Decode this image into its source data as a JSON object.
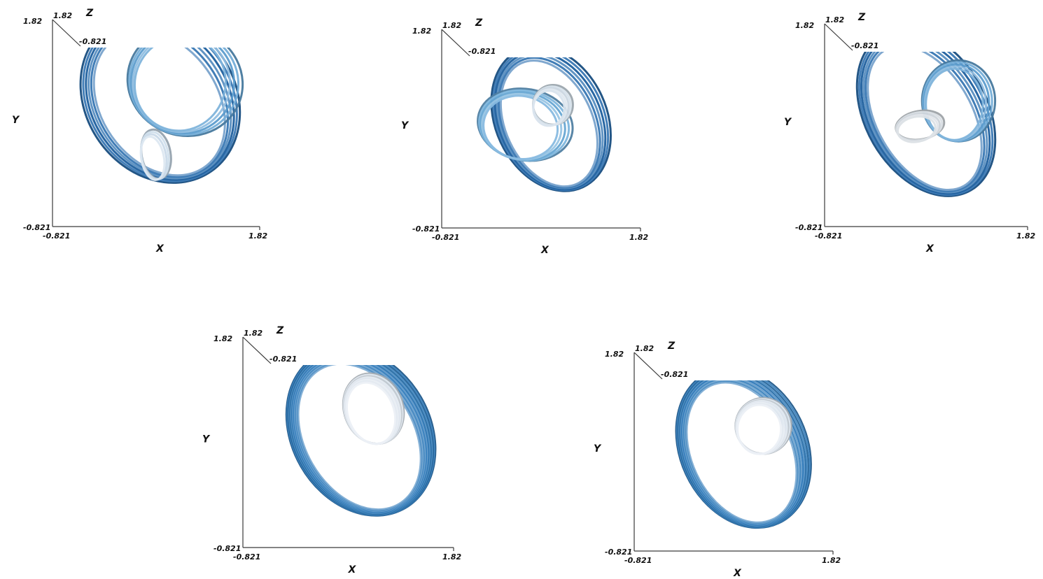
{
  "chart_data": [
    {
      "type": "line3d",
      "view": "three-loop attractor, view 1",
      "axes": {
        "x": {
          "label": "X",
          "min": "-0.821",
          "max": "1.82"
        },
        "y": {
          "label": "Y",
          "min": "-0.821",
          "max": "1.82"
        },
        "z": {
          "label": "Z",
          "min": "-0.821",
          "max": "1.82"
        }
      },
      "colormap": [
        "#08306b",
        "#2171b5",
        "#6baed6",
        "#c6dbef",
        "#e8e8e8"
      ],
      "loops": [
        {
          "name": "outer-loop",
          "cx": 0.52,
          "cy": 0.62,
          "rx": 0.36,
          "ry": 0.43,
          "rot": -35,
          "rings": 6,
          "color": "#1f66aa"
        },
        {
          "name": "upper-loop",
          "cx": 0.64,
          "cy": 0.7,
          "rx": 0.28,
          "ry": 0.26,
          "rot": 20,
          "rings": 5,
          "color": "#5fa1d2"
        },
        {
          "name": "inner-lobe",
          "cx": 0.5,
          "cy": 0.35,
          "rx": 0.07,
          "ry": 0.12,
          "rot": -10,
          "rings": 4,
          "color": "#c7d8e8"
        }
      ]
    },
    {
      "type": "line3d",
      "view": "three-loop attractor, view 2",
      "axes": {
        "x": {
          "label": "X",
          "min": "-0.821",
          "max": "1.82"
        },
        "y": {
          "label": "Y",
          "min": "-0.821",
          "max": "1.82"
        },
        "z": {
          "label": "Z",
          "min": "-0.821",
          "max": "1.82"
        }
      },
      "colormap": [
        "#08306b",
        "#2171b5",
        "#6baed6",
        "#c6dbef",
        "#e8e8e8"
      ],
      "loops": [
        {
          "name": "outer-loop",
          "cx": 0.55,
          "cy": 0.55,
          "rx": 0.28,
          "ry": 0.38,
          "rot": -25,
          "rings": 6,
          "color": "#1f66aa"
        },
        {
          "name": "left-loop",
          "cx": 0.42,
          "cy": 0.52,
          "rx": 0.24,
          "ry": 0.18,
          "rot": 10,
          "rings": 5,
          "color": "#6aaad8"
        },
        {
          "name": "inner-lobe",
          "cx": 0.56,
          "cy": 0.62,
          "rx": 0.1,
          "ry": 0.1,
          "rot": 0,
          "rings": 5,
          "color": "#d0dde8"
        }
      ]
    },
    {
      "type": "line3d",
      "view": "three-loop attractor, view 3",
      "axes": {
        "x": {
          "label": "X",
          "min": "-0.821",
          "max": "1.82"
        },
        "y": {
          "label": "Y",
          "min": "-0.821",
          "max": "1.82"
        },
        "z": {
          "label": "Z",
          "min": "-0.821",
          "max": "1.82"
        }
      },
      "colormap": [
        "#08306b",
        "#2171b5",
        "#6baed6",
        "#c6dbef",
        "#e8e8e8"
      ],
      "loops": [
        {
          "name": "outer-loop",
          "cx": 0.5,
          "cy": 0.56,
          "rx": 0.3,
          "ry": 0.44,
          "rot": -30,
          "rings": 6,
          "color": "#1f66aa"
        },
        {
          "name": "right-loop",
          "cx": 0.66,
          "cy": 0.62,
          "rx": 0.18,
          "ry": 0.2,
          "rot": 0,
          "rings": 5,
          "color": "#5fa1d2"
        },
        {
          "name": "inner-lobe",
          "cx": 0.47,
          "cy": 0.5,
          "rx": 0.12,
          "ry": 0.07,
          "rot": -10,
          "rings": 5,
          "color": "#d3d9e0"
        }
      ]
    },
    {
      "type": "line3d",
      "view": "dense torus-like attractor, view 4",
      "axes": {
        "x": {
          "label": "X",
          "min": "-0.821",
          "max": "1.82"
        },
        "y": {
          "label": "Y",
          "min": "-0.821",
          "max": "1.82"
        },
        "z": {
          "label": "Z",
          "min": "-0.821",
          "max": "1.82"
        }
      },
      "colormap": [
        "#08306b",
        "#2171b5",
        "#6baed6",
        "#c6dbef",
        "#e8e8e8"
      ],
      "loops": [
        {
          "name": "outer-shell",
          "cx": 0.56,
          "cy": 0.55,
          "rx": 0.33,
          "ry": 0.42,
          "rot": -30,
          "rings": 14,
          "color": "#2a77b8"
        },
        {
          "name": "inner-core",
          "cx": 0.62,
          "cy": 0.66,
          "rx": 0.14,
          "ry": 0.17,
          "rot": -20,
          "rings": 8,
          "color": "#dfe6ee"
        }
      ]
    },
    {
      "type": "line3d",
      "view": "dense torus-like attractor, view 5",
      "axes": {
        "x": {
          "label": "X",
          "min": "-0.821",
          "max": "1.82"
        },
        "y": {
          "label": "Y",
          "min": "-0.821",
          "max": "1.82"
        },
        "z": {
          "label": "Z",
          "min": "-0.821",
          "max": "1.82"
        }
      },
      "colormap": [
        "#08306b",
        "#2171b5",
        "#6baed6",
        "#c6dbef",
        "#e8e8e8"
      ],
      "loops": [
        {
          "name": "outer-shell",
          "cx": 0.55,
          "cy": 0.52,
          "rx": 0.32,
          "ry": 0.42,
          "rot": -25,
          "rings": 12,
          "color": "#2a77b8"
        },
        {
          "name": "inner-core",
          "cx": 0.65,
          "cy": 0.63,
          "rx": 0.14,
          "ry": 0.14,
          "rot": 0,
          "rings": 8,
          "color": "#dfe6ee"
        }
      ]
    }
  ]
}
